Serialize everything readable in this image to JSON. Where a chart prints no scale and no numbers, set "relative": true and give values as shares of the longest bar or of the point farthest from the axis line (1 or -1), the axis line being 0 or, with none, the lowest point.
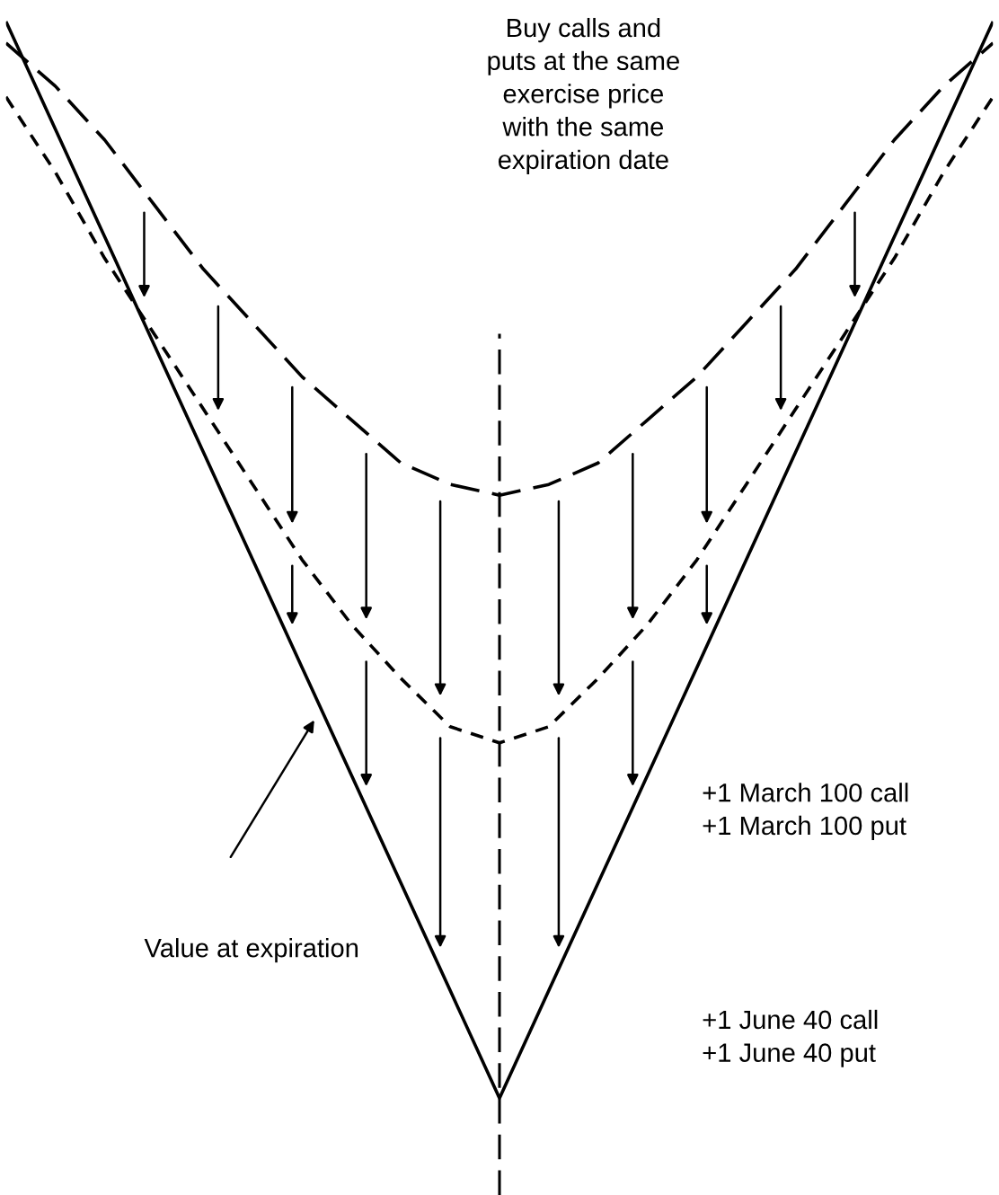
{
  "chart_data": {
    "type": "line",
    "relative": true,
    "categories": [
      null,
      null,
      null,
      null,
      null,
      null,
      null,
      null,
      null,
      null,
      null,
      null,
      null,
      null,
      null,
      null,
      null,
      null,
      null,
      null,
      null
    ],
    "series": [
      {
        "color": "#000000",
        "line_style": "solid",
        "values": [
          1,
          0.9,
          0.8,
          0.7,
          0.6,
          0.5,
          0.4,
          0.3,
          0.2,
          0.1,
          0,
          0.1,
          0.2,
          0.3,
          0.4,
          0.5,
          0.6,
          0.7,
          0.8,
          0.9,
          1
        ]
      },
      {
        "color": "#000000",
        "line_style": "dotted",
        "values": [
          0.93,
          0.86,
          0.78,
          0.71,
          0.64,
          0.57,
          0.5,
          0.44,
          0.39,
          0.345,
          0.33,
          0.345,
          0.39,
          0.44,
          0.5,
          0.57,
          0.64,
          0.71,
          0.78,
          0.86,
          0.93
        ]
      },
      {
        "color": "#000000",
        "line_style": "dashed",
        "values": [
          0.98,
          0.94,
          0.89,
          0.83,
          0.77,
          0.72,
          0.67,
          0.63,
          0.59,
          0.57,
          0.56,
          0.57,
          0.59,
          0.63,
          0.67,
          0.72,
          0.77,
          0.83,
          0.89,
          0.94,
          0.98
        ]
      }
    ],
    "annotations": [
      "Buy calls and\nputs at the same\nexercise price\nwith the same\nexpiration date",
      "+1 March 100 call\n+1 March 100 put",
      "+1 June 40 call\n+1 June 40 put",
      "Value at expiration"
    ],
    "legend": false,
    "marker": "none"
  }
}
